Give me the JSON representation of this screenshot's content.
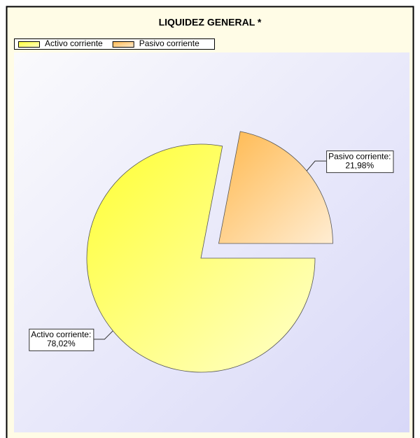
{
  "chart_data": {
    "type": "pie",
    "title": "LIQUIDEZ GENERAL *",
    "categories": [
      "Activo corriente",
      "Pasivo corriente"
    ],
    "values": [
      78.02,
      21.98
    ],
    "value_labels": [
      "78,02%",
      "21,98%"
    ],
    "slice_labels": [
      "Activo corriente:",
      "Pasivo corriente:"
    ],
    "colors": [
      "#ffff33",
      "#ffb84d"
    ],
    "explode": [
      false,
      true
    ],
    "legend": "top-left"
  }
}
